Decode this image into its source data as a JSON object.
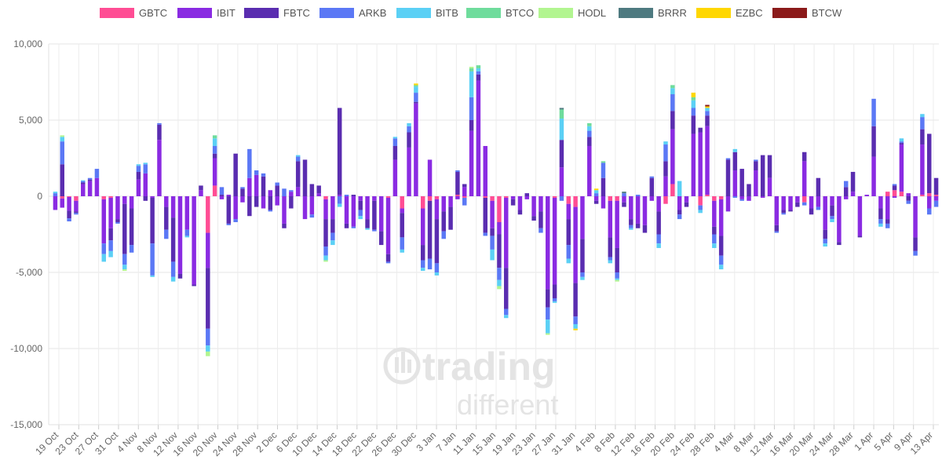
{
  "chart_data": {
    "type": "bar",
    "stacked": true,
    "title": "",
    "xlabel": "",
    "ylabel": "",
    "ylim": [
      -15000,
      10000
    ],
    "yticks": [
      10000,
      5000,
      0,
      -5000,
      -10000,
      -15000
    ],
    "ytick_labels": [
      "10,000",
      "5,000",
      "0",
      "-5,000",
      "-10,000",
      "-15,000"
    ],
    "xtick_labels": [
      "19 Oct",
      "23 Oct",
      "27 Oct",
      "31 Oct",
      "4 Nov",
      "8 Nov",
      "12 Nov",
      "16 Nov",
      "20 Nov",
      "24 Nov",
      "28 Nov",
      "2 Dec",
      "6 Dec",
      "10 Dec",
      "14 Dec",
      "18 Dec",
      "22 Dec",
      "26 Dec",
      "30 Dec",
      "3 Jan",
      "7 Jan",
      "11 Jan",
      "15 Jan",
      "19 Jan",
      "23 Jan",
      "27 Jan",
      "31 Jan",
      "4 Feb",
      "8 Feb",
      "12 Feb",
      "16 Feb",
      "20 Feb",
      "24 Feb",
      "28 Feb",
      "4 Mar",
      "8 Mar",
      "12 Mar",
      "16 Mar",
      "20 Mar",
      "24 Mar",
      "28 Mar",
      "1 Apr",
      "5 Apr",
      "9 Apr",
      "13 Apr"
    ],
    "grid": true,
    "legend_position": "top",
    "series": [
      {
        "name": "GBTC",
        "color": "#ff4d94"
      },
      {
        "name": "IBIT",
        "color": "#8a2be2"
      },
      {
        "name": "FBTC",
        "color": "#5a2db0"
      },
      {
        "name": "ARKB",
        "color": "#5b78f5"
      },
      {
        "name": "BITB",
        "color": "#5bd0f5"
      },
      {
        "name": "BTCO",
        "color": "#6fdc9c"
      },
      {
        "name": "HODL",
        "color": "#b2f590"
      },
      {
        "name": "BRRR",
        "color": "#4e7a80"
      },
      {
        "name": "EZBC",
        "color": "#ffd700"
      },
      {
        "name": "BTCW",
        "color": "#8b1a1a"
      }
    ],
    "days": [
      {
        "date": "18 Oct",
        "IBIT": -900,
        "ARKB": 200,
        "BITB": 100
      },
      {
        "date": "19 Oct",
        "IBIT": -600,
        "FBTC": 2100,
        "ARKB": 1500,
        "BITB": 300,
        "HODL": 100,
        "GBTC": -150
      },
      {
        "date": "20 Oct",
        "IBIT": -900,
        "FBTC": -500,
        "ARKB": -200,
        "GBTC": -50
      },
      {
        "date": "21 Oct",
        "IBIT": -700,
        "FBTC": -100,
        "IBIT2": 0,
        "GBTC": -300,
        "ARKB": -100
      },
      {
        "date": "22 Oct",
        "IBIT": 800,
        "FBTC": 100,
        "ARKB": 100,
        "BITB": 50
      },
      {
        "date": "25 Oct",
        "IBIT": 1000,
        "FBTC": 100,
        "ARKB": 100
      },
      {
        "date": "26 Oct",
        "IBIT": 1200,
        "ARKB": 600
      },
      {
        "date": "27 Oct",
        "IBIT": -2900,
        "ARKB": -700,
        "BITB": -500,
        "GBTC": -200
      },
      {
        "date": "28 Oct",
        "IBIT": -2000,
        "FBTC": -800,
        "ARKB": -700,
        "BITB": -400,
        "GBTC": -100
      },
      {
        "date": "29 Oct",
        "IBIT": -1500,
        "FBTC": -200,
        "ARKB": -100
      },
      {
        "date": "1 Nov",
        "IBIT": -500,
        "FBTC": -3300,
        "ARKB": -700,
        "BITB": -300,
        "HODL": -100
      },
      {
        "date": "2 Nov",
        "IBIT": -800,
        "FBTC": -2400,
        "ARKB": -500
      },
      {
        "date": "3 Nov",
        "IBIT": 1100,
        "FBTC": 500,
        "ARKB": 400,
        "BITB": 100
      },
      {
        "date": "4 Nov",
        "IBIT": 1500,
        "FBTC": -300,
        "ARKB": 600,
        "BITB": 100
      },
      {
        "date": "5 Nov",
        "IBIT": -100,
        "FBTC": -3000,
        "ARKB": -2100,
        "BITB": -100
      },
      {
        "date": "8 Nov",
        "IBIT": 3700,
        "FBTC": 1000,
        "ARKB": 100
      },
      {
        "date": "9 Nov",
        "IBIT": -700,
        "FBTC": -1500,
        "ARKB": -600
      },
      {
        "date": "10 Nov",
        "IBIT": -1400,
        "FBTC": -2900,
        "ARKB": -1000,
        "BITB": -300
      },
      {
        "date": "11 Nov",
        "IBIT": -5100,
        "FBTC": -300
      },
      {
        "date": "14 Nov",
        "IBIT": -2200,
        "ARKB": -400,
        "BITB": -100
      },
      {
        "date": "15 Nov",
        "IBIT": -5800,
        "FBTC": -100
      },
      {
        "date": "16 Nov",
        "IBIT": 400,
        "FBTC": 300
      },
      {
        "date": "17 Nov",
        "IBIT": -2300,
        "FBTC": -4000,
        "ARKB": -1100,
        "GBTC": -2400,
        "BITB": -400,
        "HODL": -300
      },
      {
        "date": "18 Nov",
        "IBIT": 1800,
        "FBTC": 300,
        "ARKB": 500,
        "GBTC": 700,
        "BITB": 500,
        "BTCO": 200
      },
      {
        "date": "19 Nov",
        "IBIT": -200,
        "FBTC": 100,
        "ARKB": 500
      },
      {
        "date": "22 Nov",
        "IBIT": 100,
        "FBTC": -1800,
        "ARKB": -100
      },
      {
        "date": "23 Nov",
        "IBIT": -1500,
        "FBTC": 2800,
        "ARKB": -200
      },
      {
        "date": "24 Nov",
        "IBIT": -400,
        "FBTC": 500,
        "ARKB": 100
      },
      {
        "date": "25 Nov",
        "IBIT": 1200,
        "FBTC": -1300,
        "ARKB": 1900
      },
      {
        "date": "29 Nov",
        "IBIT": 1400,
        "FBTC": -700,
        "ARKB": 300
      },
      {
        "date": "30 Nov",
        "IBIT": -800,
        "FBTC": 1300,
        "ARKB": 200
      },
      {
        "date": "1 Dec",
        "IBIT": 400,
        "FBTC": -900,
        "ARKB": -100
      },
      {
        "date": "2 Dec",
        "IBIT": -600,
        "FBTC": 700,
        "ARKB": 200
      },
      {
        "date": "3 Dec",
        "IBIT": -1800,
        "FBTC": -300,
        "ARKB": 500
      },
      {
        "date": "6 Dec",
        "IBIT": 300,
        "FBTC": -800,
        "ARKB": 100
      },
      {
        "date": "7 Dec",
        "IBIT": 600,
        "FBTC": 1700,
        "ARKB": 300,
        "BITB": 100
      },
      {
        "date": "8 Dec",
        "IBIT": -1500,
        "FBTC": 2400
      },
      {
        "date": "9 Dec",
        "IBIT": -1200,
        "FBTC": 800,
        "ARKB": -200
      },
      {
        "date": "10 Dec",
        "IBIT": 200,
        "FBTC": 500
      },
      {
        "date": "13 Dec",
        "IBIT": -1300,
        "FBTC": -1800,
        "ARKB": -600,
        "BITB": -300,
        "GBTC": -200,
        "HODL": -100
      },
      {
        "date": "14 Dec",
        "IBIT": -1500,
        "FBTC": -900,
        "ARKB": -500,
        "BITB": -300
      },
      {
        "date": "15 Dec",
        "IBIT": 100,
        "FBTC": 5700,
        "ARKB": -500,
        "BITB": -200
      },
      {
        "date": "16 Dec",
        "IBIT": -1800,
        "FBTC": -300,
        "ARKB": 100
      },
      {
        "date": "17 Dec",
        "IBIT": -2000,
        "FBTC": 100,
        "ARKB": -100
      },
      {
        "date": "20 Dec",
        "IBIT": -300,
        "FBTC": -600,
        "ARKB": -400,
        "BITB": -200
      },
      {
        "date": "21 Dec",
        "IBIT": -1500,
        "FBTC": -600,
        "BITB": -100
      },
      {
        "date": "22 Dec",
        "IBIT": -300,
        "FBTC": -1900,
        "ARKB": -100
      },
      {
        "date": "23 Dec",
        "IBIT": -2300,
        "FBTC": -900
      },
      {
        "date": "27 Dec",
        "IBIT": -3700,
        "FBTC": -500,
        "ARKB": -100,
        "GBTC": -100
      },
      {
        "date": "28 Dec",
        "IBIT": 2400,
        "FBTC": 900,
        "ARKB": 500,
        "BITB": 100
      },
      {
        "date": "29 Dec",
        "IBIT": -300,
        "FBTC": -1600,
        "ARKB": -800,
        "GBTC": -800,
        "BITB": -200
      },
      {
        "date": "30 Dec",
        "IBIT": 3200,
        "FBTC": 1000,
        "ARKB": 400,
        "BITB": 200
      },
      {
        "date": "31 Dec",
        "IBIT": 6100,
        "FBTC": 100,
        "ARKB": 600,
        "BITB": 400,
        "BTCO": 100,
        "EZBC": 100
      },
      {
        "date": "3 Jan",
        "IBIT": -2400,
        "FBTC": -1000,
        "ARKB": -500,
        "GBTC": -800,
        "BITB": -200
      },
      {
        "date": "4 Jan",
        "IBIT": 2400,
        "FBTC": -3800,
        "ARKB": -700,
        "GBTC": -300
      },
      {
        "date": "5 Jan",
        "IBIT": -1300,
        "FBTC": -2900,
        "ARKB": -600,
        "GBTC": -200,
        "BITB": -200
      },
      {
        "date": "6 Jan",
        "IBIT": -1000,
        "FBTC": -1300,
        "ARKB": -500
      },
      {
        "date": "7 Jan",
        "IBIT": -700,
        "FBTC": -1500
      },
      {
        "date": "10 Jan",
        "IBIT": -200,
        "FBTC": 1500,
        "ARKB": 100,
        "GBTC": 100
      },
      {
        "date": "11 Jan",
        "IBIT": 600,
        "FBTC": 200,
        "ARKB": -500,
        "GBTC": -100
      },
      {
        "date": "12 Jan",
        "IBIT": 4300,
        "FBTC": 700,
        "ARKB": 1500,
        "BITB": 1700,
        "BTCO": 200,
        "HODL": 100
      },
      {
        "date": "13 Jan",
        "IBIT": 7600,
        "FBTC": 400,
        "ARKB": 200,
        "BITB": 200,
        "BTCO": 200
      },
      {
        "date": "14 Jan",
        "IBIT": 3300,
        "FBTC": -2300,
        "ARKB": -200,
        "GBTC": -100
      },
      {
        "date": "17 Jan",
        "IBIT": -1800,
        "FBTC": -500,
        "ARKB": -900,
        "GBTC": -300,
        "BITB": -700
      },
      {
        "date": "18 Jan",
        "IBIT": -800,
        "FBTC": -2200,
        "ARKB": -800,
        "GBTC": -1700,
        "BITB": -400,
        "HODL": -200
      },
      {
        "date": "19 Jan",
        "IBIT": -4600,
        "FBTC": -2700,
        "ARKB": -400,
        "GBTC": -100,
        "BITB": -200
      },
      {
        "date": "20 Jan",
        "IBIT": -200,
        "FBTC": -400
      },
      {
        "date": "21 Jan",
        "IBIT": -900,
        "FBTC": -300
      },
      {
        "date": "24 Jan",
        "IBIT": -200,
        "FBTC": 200
      },
      {
        "date": "25 Jan",
        "IBIT": -1300,
        "FBTC": -300
      },
      {
        "date": "26 Jan",
        "IBIT": -1000,
        "FBTC": -1100,
        "ARKB": -300
      },
      {
        "date": "27 Jan",
        "IBIT": -6100,
        "FBTC": -1200,
        "ARKB": -800,
        "BITB": -900,
        "HODL": -100
      },
      {
        "date": "28 Jan",
        "IBIT": -5700,
        "FBTC": -900,
        "ARKB": -200,
        "GBTC": -100,
        "BITB": -100
      },
      {
        "date": "31 Jan",
        "IBIT": 1900,
        "FBTC": 1800,
        "ARKB": -300,
        "BITB": 1400,
        "BTCO": 600,
        "BRRR": 100
      },
      {
        "date": "1 Feb",
        "IBIT": -1000,
        "FBTC": -1700,
        "ARKB": -900,
        "GBTC": -500,
        "BITB": -300
      },
      {
        "date": "2 Feb",
        "IBIT": -5000,
        "FBTC": -2200,
        "ARKB": -500,
        "GBTC": -700,
        "BITB": -300,
        "EZBC": -100
      },
      {
        "date": "3 Feb",
        "IBIT": -2800,
        "FBTC": -2200,
        "ARKB": -300,
        "BITB": -200
      },
      {
        "date": "4 Feb",
        "IBIT": 3300,
        "FBTC": 600,
        "ARKB": 400,
        "BITB": 300,
        "BTCO": 200
      },
      {
        "date": "7 Feb",
        "IBIT": -300,
        "FBTC": -200,
        "ARKB": 200,
        "BITB": 200,
        "EZBC": 100
      },
      {
        "date": "8 Feb",
        "IBIT": -800,
        "FBTC": 1200,
        "ARKB": 1000,
        "BTCO": 100
      },
      {
        "date": "9 Feb",
        "IBIT": -2400,
        "FBTC": -1300,
        "ARKB": -200,
        "GBTC": -300,
        "BITB": -200
      },
      {
        "date": "10 Feb",
        "IBIT": -3100,
        "FBTC": -1600,
        "ARKB": -400,
        "GBTC": -300,
        "BITB": -100,
        "HODL": -100
      },
      {
        "date": "11 Feb",
        "IBIT": -400,
        "FBTC": -300,
        "ARKB": 200,
        "BRRR": 100
      },
      {
        "date": "15 Feb",
        "IBIT": -1500,
        "FBTC": -400,
        "ARKB": -200,
        "BITB": -100
      },
      {
        "date": "16 Feb",
        "IBIT": -1800,
        "FBTC": -300,
        "ARKB": 100
      },
      {
        "date": "17 Feb",
        "IBIT": -1900,
        "FBTC": -500
      },
      {
        "date": "18 Feb",
        "IBIT": -300,
        "FBTC": 1200,
        "ARKB": 100
      },
      {
        "date": "22 Feb",
        "IBIT": -1000,
        "FBTC": -1500,
        "ARKB": -600,
        "BITB": -300
      },
      {
        "date": "23 Feb",
        "IBIT": 1300,
        "FBTC": 1000,
        "ARKB": 1100,
        "GBTC": -500,
        "BITB": 200
      },
      {
        "date": "24 Feb",
        "IBIT": 3600,
        "FBTC": 1200,
        "ARKB": 1100,
        "GBTC": 800,
        "BITB": 400,
        "BTCO": 200
      },
      {
        "date": "25 Feb",
        "IBIT": -900,
        "FBTC": -300,
        "ARKB": -300,
        "BITB": 1000
      },
      {
        "date": "28 Feb",
        "IBIT": -400,
        "FBTC": -300
      },
      {
        "date": "1 Mar",
        "IBIT": 4100,
        "FBTC": 1200,
        "ARKB": 500,
        "BITB": 500,
        "BTCO": 200,
        "EZBC": 300
      },
      {
        "date": "2 Mar",
        "IBIT": 4200,
        "FBTC": 300,
        "ARKB": -300,
        "GBTC": -600,
        "BITB": -200
      },
      {
        "date": "3 Mar",
        "IBIT": 4500,
        "FBTC": 700,
        "ARKB": 300,
        "GBTC": 100,
        "BITB": 200,
        "EZBC": 100,
        "BTCW": 100
      },
      {
        "date": "4 Mar",
        "IBIT": -1700,
        "FBTC": -500,
        "ARKB": -600,
        "GBTC": -300,
        "BITB": -300
      },
      {
        "date": "7 Mar",
        "IBIT": -2400,
        "FBTC": -1300,
        "ARKB": -600,
        "GBTC": -200,
        "BITB": -300
      },
      {
        "date": "8 Mar",
        "IBIT": -1000,
        "FBTC": 2400,
        "ARKB": 100
      },
      {
        "date": "9 Mar",
        "IBIT": 1700,
        "FBTC": 1200,
        "ARKB": -100,
        "BITB": 200
      },
      {
        "date": "10 Mar",
        "IBIT": -200,
        "FBTC": 1800,
        "ARKB": -100
      },
      {
        "date": "11 Mar",
        "IBIT": -300,
        "FBTC": 800
      },
      {
        "date": "14 Mar",
        "IBIT": 1700,
        "FBTC": 600,
        "ARKB": 100
      },
      {
        "date": "15 Mar",
        "IBIT": -100,
        "FBTC": 2700
      },
      {
        "date": "16 Mar",
        "IBIT": 1200,
        "FBTC": 1500
      },
      {
        "date": "17 Mar",
        "IBIT": -1900,
        "FBTC": -400,
        "ARKB": -100
      },
      {
        "date": "18 Mar",
        "IBIT": -900,
        "FBTC": -200,
        "ARKB": -100
      },
      {
        "date": "21 Mar",
        "IBIT": -900,
        "FBTC": -100
      },
      {
        "date": "22 Mar",
        "IBIT": -400,
        "FBTC": -300
      },
      {
        "date": "23 Mar",
        "IBIT": 2300,
        "FBTC": 600,
        "GBTC": -400,
        "ARKB": -200
      },
      {
        "date": "24 Mar",
        "IBIT": -800,
        "FBTC": -400
      },
      {
        "date": "25 Mar",
        "IBIT": -700,
        "FBTC": 1200,
        "ARKB": -200
      },
      {
        "date": "28 Mar",
        "IBIT": -2200,
        "FBTC": -600,
        "ARKB": -300,
        "BITB": -200
      },
      {
        "date": "29 Mar",
        "IBIT": -600,
        "FBTC": -700,
        "ARKB": -200,
        "BITB": -200
      },
      {
        "date": "30 Mar",
        "IBIT": -3000,
        "FBTC": -200
      },
      {
        "date": "31 Mar",
        "IBIT": -200,
        "FBTC": 600,
        "ARKB": 400
      },
      {
        "date": "1 Apr",
        "IBIT": 300,
        "FBTC": 1300
      },
      {
        "date": "4 Apr",
        "IBIT": -2600,
        "FBTC": -100
      },
      {
        "date": "5 Apr",
        "IBIT": 100
      },
      {
        "date": "7 Apr",
        "IBIT": 2600,
        "FBTC": 2000,
        "ARKB": 1800
      },
      {
        "date": "8 Apr",
        "IBIT": -800,
        "FBTC": -700,
        "ARKB": -300,
        "BITB": -200
      },
      {
        "date": "9 Apr",
        "IBIT": -1500,
        "FBTC": -300,
        "ARKB": -300,
        "GBTC": 300,
        "FBTC2": 0
      },
      {
        "date": "10 Apr",
        "IBIT": -100,
        "FBTC": 300,
        "ARKB": 100,
        "GBTC": 400
      },
      {
        "date": "11 Apr",
        "IBIT": 3100,
        "FBTC": 100,
        "GBTC": 300,
        "ARKB": 100,
        "BITB": 200
      },
      {
        "date": "14 Apr",
        "IBIT": 200,
        "FBTC": -300,
        "ARKB": -200
      },
      {
        "date": "15 Apr",
        "IBIT": -2700,
        "FBTC": -900,
        "ARKB": -300
      },
      {
        "date": "16 Apr",
        "IBIT": 3300,
        "FBTC": 1000,
        "ARKB": 800,
        "GBTC": 100,
        "BITB": 200
      },
      {
        "date": "17 Apr",
        "IBIT": -800,
        "FBTC": 3900,
        "ARKB": -400,
        "GBTC": 200
      },
      {
        "date": "18 Apr",
        "IBIT": -300,
        "FBTC": 1100,
        "ARKB": -400,
        "GBTC": 100
      }
    ]
  },
  "watermark": {
    "line1": "trading",
    "line2": "different"
  }
}
